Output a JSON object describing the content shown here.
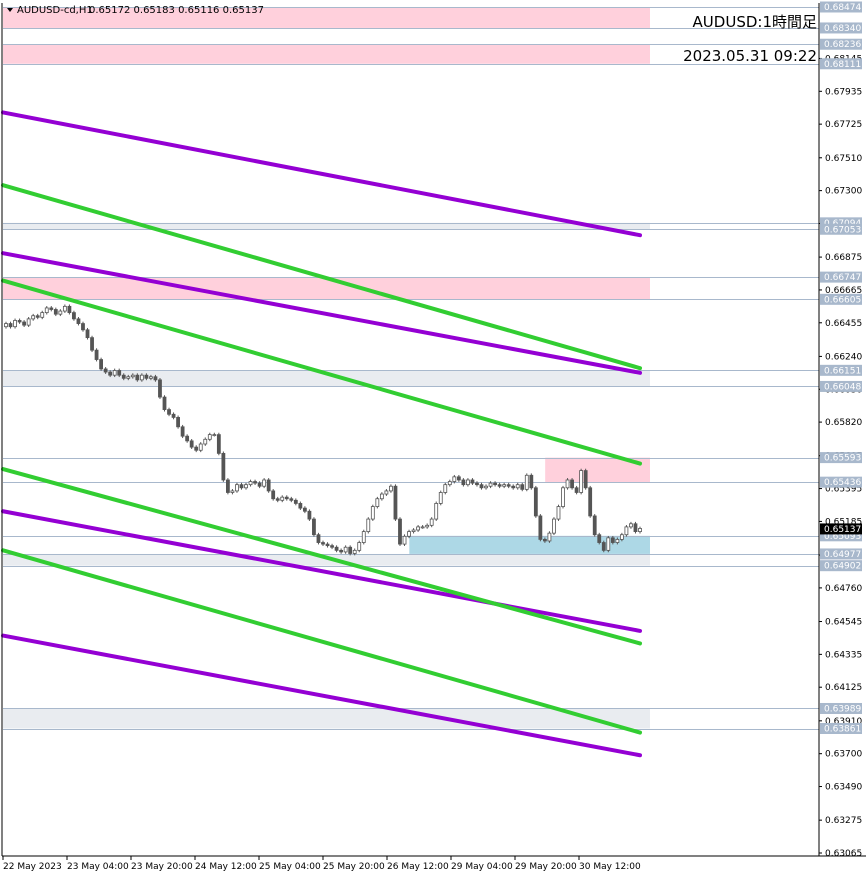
{
  "header": {
    "symbol_label": "AUDUSD-cd,H1",
    "ohlc": "0.65172 0.65183 0.65116 0.65137",
    "menu_icon": "triangle-down-icon"
  },
  "overlay": {
    "title": "AUDUSD:1時間足",
    "timestamp": "2023.05.31 09:22"
  },
  "chart_data": {
    "type": "candlestick",
    "symbol": "AUDUSD-cd",
    "timeframe": "H1",
    "ylim": [
      0.63065,
      0.68474
    ],
    "y_ticks": [
      "0.68145",
      "0.67935",
      "0.67725",
      "0.67510",
      "0.67300",
      "0.67090",
      "0.66875",
      "0.66665",
      "0.66455",
      "0.66240",
      "0.66030",
      "0.65820",
      "0.65605",
      "0.65395",
      "0.65185",
      "0.64970",
      "0.64760",
      "0.64545",
      "0.64335",
      "0.64125",
      "0.63910",
      "0.63700",
      "0.63490",
      "0.63275",
      "0.63065"
    ],
    "x_tick_labels": [
      "22 May 2023",
      "23 May 04:00",
      "23 May 20:00",
      "24 May 12:00",
      "25 May 04:00",
      "25 May 20:00",
      "26 May 12:00",
      "29 May 04:00",
      "29 May 20:00",
      "30 May 12:00"
    ],
    "current_price": "0.65137",
    "current_price_color": "#000000",
    "horizontal_levels": [
      {
        "label": "0.68474",
        "value": 0.68474
      },
      {
        "label": "0.68340",
        "value": 0.6834
      },
      {
        "label": "0.68236",
        "value": 0.68236
      },
      {
        "label": "0.68111",
        "value": 0.68111
      },
      {
        "label": "0.67094",
        "value": 0.67094
      },
      {
        "label": "0.67053",
        "value": 0.67053
      },
      {
        "label": "0.66747",
        "value": 0.66747
      },
      {
        "label": "0.66605",
        "value": 0.66605
      },
      {
        "label": "0.66151",
        "value": 0.66151
      },
      {
        "label": "0.66048",
        "value": 0.66048
      },
      {
        "label": "0.65593",
        "value": 0.65593
      },
      {
        "label": "0.65436",
        "value": 0.65436
      },
      {
        "label": "0.65093",
        "value": 0.65093
      },
      {
        "label": "0.64977",
        "value": 0.64977
      },
      {
        "label": "0.64902",
        "value": 0.64902
      },
      {
        "label": "0.63989",
        "value": 0.63989
      },
      {
        "label": "0.63861",
        "value": 0.63861
      }
    ],
    "zones": [
      {
        "from": 0.6834,
        "to": 0.68474,
        "color": "#ffd0dc",
        "x_start": 0
      },
      {
        "from": 0.68111,
        "to": 0.68236,
        "color": "#ffd0dc",
        "x_start": 0
      },
      {
        "from": 0.67053,
        "to": 0.67094,
        "color": "#e9ecf0",
        "x_start": 0
      },
      {
        "from": 0.66605,
        "to": 0.66747,
        "color": "#ffd0dc",
        "x_start": 0
      },
      {
        "from": 0.66048,
        "to": 0.66151,
        "color": "#e9ecf0",
        "x_start": 0
      },
      {
        "from": 0.65436,
        "to": 0.65593,
        "color": "#ffd0dc",
        "x_start": 0.838
      },
      {
        "from": 0.64977,
        "to": 0.65093,
        "color": "#add8e6",
        "x_start": 0.628
      },
      {
        "from": 0.64902,
        "to": 0.64977,
        "color": "#e9ecf0",
        "x_start": 0
      },
      {
        "from": 0.63861,
        "to": 0.63989,
        "color": "#e9ecf0",
        "x_start": 0
      }
    ],
    "trend_lines": [
      {
        "color": "#9400d3",
        "x1": 0,
        "y1": 0.678,
        "x2": 1,
        "y2": 0.67015
      },
      {
        "color": "#9400d3",
        "x1": 0,
        "y1": 0.669,
        "x2": 1,
        "y2": 0.66135
      },
      {
        "color": "#9400d3",
        "x1": 0,
        "y1": 0.6525,
        "x2": 1,
        "y2": 0.64485
      },
      {
        "color": "#9400d3",
        "x1": 0,
        "y1": 0.64455,
        "x2": 1,
        "y2": 0.6369
      },
      {
        "color": "#32cd32",
        "x1": 0,
        "y1": 0.67335,
        "x2": 1,
        "y2": 0.66165
      },
      {
        "color": "#32cd32",
        "x1": 0,
        "y1": 0.66725,
        "x2": 1,
        "y2": 0.65555
      },
      {
        "color": "#32cd32",
        "x1": 0,
        "y1": 0.6552,
        "x2": 1,
        "y2": 0.64405
      },
      {
        "color": "#32cd32",
        "x1": 0,
        "y1": 0.65,
        "x2": 1,
        "y2": 0.63835
      }
    ],
    "closes": [
      0.6645,
      0.6643,
      0.6647,
      0.6646,
      0.6644,
      0.6648,
      0.665,
      0.6649,
      0.6652,
      0.6655,
      0.6654,
      0.6651,
      0.6653,
      0.6656,
      0.6652,
      0.6648,
      0.6645,
      0.6641,
      0.6636,
      0.6628,
      0.6622,
      0.6616,
      0.6614,
      0.6612,
      0.6615,
      0.6612,
      0.661,
      0.6611,
      0.6612,
      0.6609,
      0.6612,
      0.661,
      0.6611,
      0.6609,
      0.6598,
      0.659,
      0.6587,
      0.6585,
      0.6579,
      0.6573,
      0.657,
      0.6566,
      0.6564,
      0.6568,
      0.6571,
      0.6574,
      0.6574,
      0.6562,
      0.6545,
      0.6537,
      0.6538,
      0.6542,
      0.654,
      0.6542,
      0.6544,
      0.6543,
      0.6541,
      0.6545,
      0.6538,
      0.6533,
      0.6532,
      0.6534,
      0.6533,
      0.6532,
      0.653,
      0.6527,
      0.6525,
      0.652,
      0.651,
      0.6505,
      0.6504,
      0.6503,
      0.6502,
      0.65,
      0.6499,
      0.6502,
      0.6498,
      0.65,
      0.6505,
      0.6512,
      0.652,
      0.6528,
      0.6533,
      0.6536,
      0.6538,
      0.6541,
      0.652,
      0.6504,
      0.6509,
      0.6512,
      0.6513,
      0.6515,
      0.6515,
      0.6516,
      0.652,
      0.653,
      0.6537,
      0.6542,
      0.6544,
      0.6547,
      0.6545,
      0.6542,
      0.6545,
      0.6543,
      0.6542,
      0.654,
      0.6541,
      0.6543,
      0.6542,
      0.6541,
      0.6542,
      0.6541,
      0.654,
      0.6542,
      0.6539,
      0.6548,
      0.654,
      0.6522,
      0.6507,
      0.6506,
      0.6511,
      0.652,
      0.6528,
      0.654,
      0.6545,
      0.654,
      0.6537,
      0.6551,
      0.654,
      0.6522,
      0.651,
      0.6505,
      0.65,
      0.6508,
      0.6505,
      0.6507,
      0.651,
      0.6515,
      0.6517,
      0.6512,
      0.6514
    ]
  }
}
